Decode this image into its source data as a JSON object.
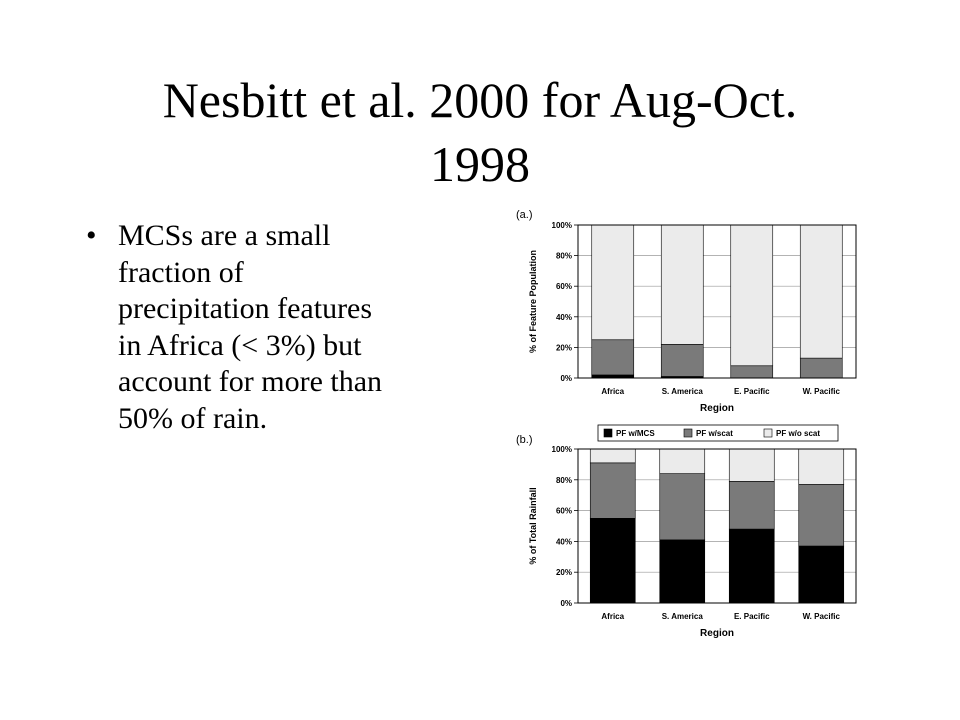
{
  "slide": {
    "title_lines": [
      "Nesbitt et al. 2000 for Aug-Oct.",
      "1998"
    ],
    "bullet_symbol": "•",
    "bullet_lines": [
      "MCSs are a small",
      "fraction of",
      "precipitation features",
      "in Africa (< 3%) but",
      "account for more than",
      "50% of rain."
    ]
  },
  "chart_data": [
    {
      "panel_label": "(a.)",
      "type": "bar",
      "stacked": true,
      "categories": [
        "Africa",
        "S. America",
        "E. Pacific",
        "W. Pacific"
      ],
      "series": [
        {
          "name": "PF w/MCS",
          "values": [
            2,
            1,
            0,
            0
          ],
          "color": "#000000"
        },
        {
          "name": "PF w/scat",
          "values": [
            23,
            21,
            8,
            13
          ],
          "color": "#7a7a7a"
        },
        {
          "name": "PF w/o scat",
          "values": [
            75,
            78,
            92,
            87
          ],
          "color": "#ebebeb"
        }
      ],
      "xlabel": "Region",
      "ylabel": "% of Feature Population",
      "ylim": [
        0,
        100
      ],
      "yticks": [
        "0%",
        "20%",
        "40%",
        "60%",
        "80%",
        "100%"
      ],
      "grid": true
    },
    {
      "panel_label": "(b.)",
      "type": "bar",
      "stacked": true,
      "categories": [
        "Africa",
        "S. America",
        "E. Pacific",
        "W. Pacific"
      ],
      "series": [
        {
          "name": "PF w/MCS",
          "values": [
            55,
            41,
            48,
            37
          ],
          "color": "#000000"
        },
        {
          "name": "PF w/scat",
          "values": [
            36,
            43,
            31,
            40
          ],
          "color": "#7a7a7a"
        },
        {
          "name": "PF w/o scat",
          "values": [
            9,
            16,
            21,
            23
          ],
          "color": "#ebebeb"
        }
      ],
      "xlabel": "Region",
      "ylabel": "% of Total Rainfall",
      "ylim": [
        0,
        100
      ],
      "yticks": [
        "0%",
        "20%",
        "40%",
        "60%",
        "80%",
        "100%"
      ],
      "grid": true,
      "legend": "top"
    }
  ]
}
